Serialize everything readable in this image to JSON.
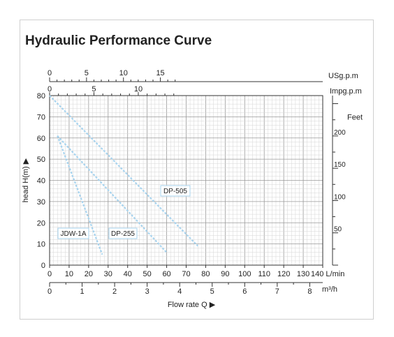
{
  "title": "Hydraulic Performance Curve",
  "chart_data": {
    "type": "line",
    "title": "Hydraulic Performance Curve",
    "xlabel": "Flow rate Q",
    "ylabel": "head H(m)",
    "xlim": [
      0,
      140
    ],
    "ylim": [
      0,
      80
    ],
    "x_unit": "L/min",
    "x_ticks": [
      "0",
      "10",
      "20",
      "30",
      "40",
      "50",
      "60",
      "70",
      "80",
      "90",
      "100",
      "110",
      "120",
      "130",
      "140"
    ],
    "y_ticks": [
      "0",
      "10",
      "20",
      "30",
      "40",
      "50",
      "60",
      "70",
      "80"
    ],
    "grid": true,
    "secondary_axes": {
      "usgpm": {
        "unit": "USg.p.m",
        "ticks": [
          0,
          5,
          10,
          15
        ],
        "labels": [
          "0",
          "5",
          "10",
          "15"
        ]
      },
      "impgpm": {
        "unit": "Impg.p.m",
        "ticks": [
          0,
          5,
          10
        ],
        "labels": [
          "0",
          "5",
          "10"
        ]
      },
      "m3h": {
        "unit": "m³/h",
        "ticks": [
          0,
          1,
          2,
          3,
          4,
          5,
          6,
          7,
          8
        ],
        "labels": [
          "0",
          "1",
          "2",
          "3",
          "4",
          "5",
          "6",
          "7",
          "8"
        ]
      },
      "feet": {
        "unit": "Feet",
        "ticks": [
          50,
          100,
          150,
          200
        ],
        "labels": [
          "50",
          "100",
          "150",
          "200"
        ]
      }
    },
    "series": [
      {
        "name": "JDW-1A",
        "x": [
          4,
          27
        ],
        "y": [
          61,
          5
        ]
      },
      {
        "name": "DP-255",
        "x": [
          4,
          60
        ],
        "y": [
          61,
          6
        ]
      },
      {
        "name": "DP-505",
        "x": [
          0,
          76
        ],
        "y": [
          80,
          9
        ]
      }
    ],
    "colors": {
      "curve": "#a7d3ee",
      "grid_minor": "#d6d6d6",
      "grid_major": "#9a9a9a",
      "axis": "#333333"
    }
  }
}
